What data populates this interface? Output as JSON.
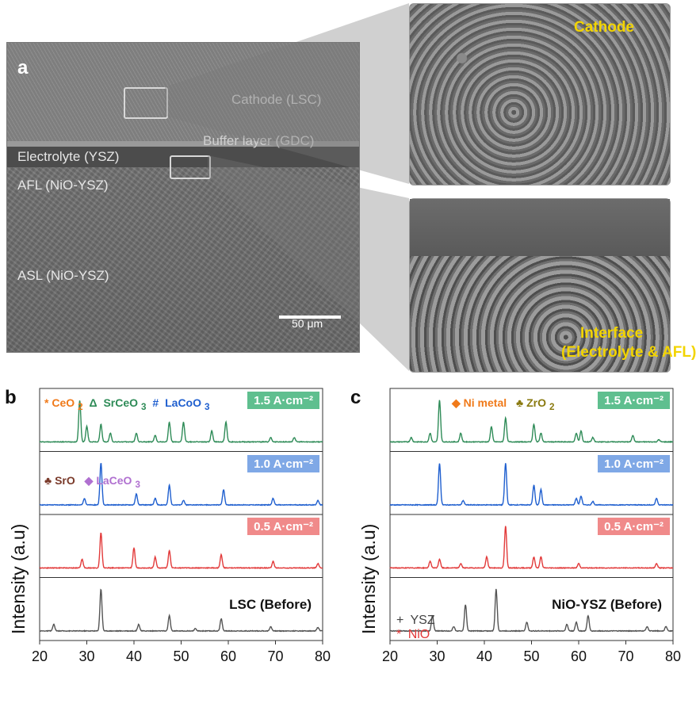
{
  "panel_a": {
    "letter": "a",
    "labels": {
      "cathode": "Cathode (LSC)",
      "buffer": "Buffer layer (GDC)",
      "electrolyte": "Electrolyte (YSZ)",
      "afl": "AFL (NiO-YSZ)",
      "asl": "ASL (NiO-YSZ)"
    },
    "scale": "50 μm",
    "zoom_top_label": "Cathode",
    "zoom_bottom_label_1": "Interface",
    "zoom_bottom_label_2": "(Electrolyte & AFL)"
  },
  "panel_b": {
    "letter": "b",
    "legend_top": {
      "ceo2": "CeO",
      "ceo2_sub": "2",
      "srceo3_sym": "Δ",
      "srceo3": "SrCeO",
      "srceo3_sub": "3",
      "lacoo3_sym": "#",
      "lacoo3": "LaCoO",
      "lacoo3_sub": "3"
    },
    "legend_mid": {
      "sro": "SrO",
      "laceo3": "LaCeO",
      "laceo3_sub": "3"
    },
    "y_label": "Intensity (a.u)"
  },
  "panel_c": {
    "letter": "c",
    "legend_top": {
      "ni": "Ni metal",
      "zro2": "ZrO",
      "zro2_sub": "2"
    },
    "legend_bottom": {
      "ysz_sym": "+",
      "ysz": "YSZ",
      "nio_sym": "*",
      "nio": "NiO"
    },
    "y_label": "Intensity (a.u)"
  },
  "colors": {
    "green": "#2e8b57",
    "blue": "#1f5fcf",
    "red": "#e23a3a",
    "gray": "#555555",
    "badge_green": "#5fbf8f",
    "badge_blue": "#7fa8e6",
    "badge_red": "#f08a8a",
    "orange": "#f07a1a",
    "olive": "#8a7a10",
    "purple": "#b070d0",
    "brown": "#7a3a2a"
  },
  "chart_data": [
    {
      "type": "line",
      "title": "",
      "xlabel": "",
      "ylabel": "Intensity (a.u)",
      "xlim": [
        20,
        80
      ],
      "x_ticks": [
        "20",
        "30",
        "40",
        "50",
        "60",
        "70",
        "80"
      ],
      "series": [
        {
          "name": "1.5 A·cm⁻²",
          "peaks": [
            [
              28.5,
              0.95
            ],
            [
              30,
              0.35
            ],
            [
              33,
              0.4
            ],
            [
              35,
              0.2
            ],
            [
              40.5,
              0.2
            ],
            [
              44.5,
              0.15
            ],
            [
              47.5,
              0.45
            ],
            [
              50.5,
              0.45
            ],
            [
              56.5,
              0.25
            ],
            [
              59.5,
              0.45
            ],
            [
              69,
              0.1
            ],
            [
              74,
              0.1
            ]
          ]
        },
        {
          "name": "1.0 A·cm⁻²",
          "peaks": [
            [
              29.5,
              0.15
            ],
            [
              33,
              0.95
            ],
            [
              40.5,
              0.25
            ],
            [
              44.5,
              0.15
            ],
            [
              47.5,
              0.45
            ],
            [
              50.5,
              0.1
            ],
            [
              59,
              0.35
            ],
            [
              69.5,
              0.15
            ],
            [
              79,
              0.1
            ]
          ]
        },
        {
          "name": "0.5 A·cm⁻²",
          "peaks": [
            [
              29,
              0.2
            ],
            [
              33,
              0.8
            ],
            [
              40,
              0.45
            ],
            [
              44.5,
              0.25
            ],
            [
              47.5,
              0.4
            ],
            [
              58.5,
              0.3
            ],
            [
              69.5,
              0.15
            ],
            [
              79,
              0.1
            ]
          ]
        },
        {
          "name": "LSC (Before)",
          "peaks": [
            [
              23,
              0.15
            ],
            [
              33,
              0.95
            ],
            [
              41,
              0.15
            ],
            [
              47.5,
              0.35
            ],
            [
              53,
              0.05
            ],
            [
              58.5,
              0.28
            ],
            [
              69,
              0.1
            ],
            [
              79,
              0.08
            ]
          ]
        }
      ]
    },
    {
      "type": "line",
      "title": "",
      "xlabel": "",
      "ylabel": "Intensity (a.u)",
      "xlim": [
        20,
        80
      ],
      "x_ticks": [
        "20",
        "30",
        "40",
        "50",
        "60",
        "70",
        "80"
      ],
      "series": [
        {
          "name": "1.5 A·cm⁻²",
          "peaks": [
            [
              24.5,
              0.1
            ],
            [
              28.5,
              0.2
            ],
            [
              30.5,
              0.95
            ],
            [
              35,
              0.2
            ],
            [
              41.5,
              0.35
            ],
            [
              44.5,
              0.55
            ],
            [
              50.5,
              0.4
            ],
            [
              52,
              0.2
            ],
            [
              59.5,
              0.2
            ],
            [
              60.5,
              0.25
            ],
            [
              63,
              0.1
            ],
            [
              71.5,
              0.15
            ],
            [
              77,
              0.05
            ]
          ]
        },
        {
          "name": "1.0 A·cm⁻²",
          "peaks": [
            [
              30.5,
              0.95
            ],
            [
              35.5,
              0.1
            ],
            [
              44.5,
              0.95
            ],
            [
              50.5,
              0.45
            ],
            [
              52,
              0.35
            ],
            [
              59.5,
              0.15
            ],
            [
              60.5,
              0.2
            ],
            [
              63,
              0.08
            ],
            [
              76.5,
              0.15
            ]
          ]
        },
        {
          "name": "0.5 A·cm⁻²",
          "peaks": [
            [
              28.5,
              0.15
            ],
            [
              30.5,
              0.2
            ],
            [
              35,
              0.1
            ],
            [
              40.5,
              0.25
            ],
            [
              44.5,
              0.95
            ],
            [
              50.5,
              0.25
            ],
            [
              52,
              0.25
            ],
            [
              60,
              0.1
            ],
            [
              76.5,
              0.1
            ]
          ]
        },
        {
          "name": "NiO-YSZ (Before)",
          "peaks": [
            [
              29,
              0.35
            ],
            [
              33.5,
              0.1
            ],
            [
              36,
              0.6
            ],
            [
              42.5,
              0.95
            ],
            [
              49,
              0.2
            ],
            [
              57.5,
              0.15
            ],
            [
              59.5,
              0.2
            ],
            [
              62,
              0.35
            ],
            [
              74.5,
              0.1
            ],
            [
              78.5,
              0.1
            ]
          ]
        }
      ]
    }
  ],
  "badges": {
    "b1": "1.5 A·cm⁻²",
    "b2": "1.0 A·cm⁻²",
    "b3": "0.5 A·cm⁻²",
    "b4": "LSC (Before)",
    "c1": "1.5 A·cm⁻²",
    "c2": "1.0 A·cm⁻²",
    "c3": "0.5 A·cm⁻²",
    "c4": "NiO-YSZ (Before)"
  }
}
